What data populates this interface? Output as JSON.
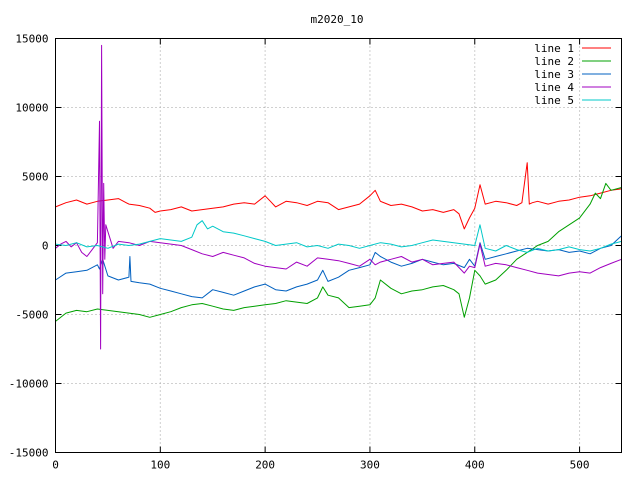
{
  "chart_data": {
    "type": "line",
    "title": "m2020_10",
    "xlabel": "",
    "ylabel": "",
    "xlim": [
      0,
      540
    ],
    "ylim": [
      -15000,
      15000
    ],
    "xticks": [
      0,
      100,
      200,
      300,
      400,
      500
    ],
    "yticks": [
      -15000,
      -10000,
      -5000,
      0,
      5000,
      10000,
      15000
    ],
    "grid": true,
    "legend_position": "top-right",
    "series": [
      {
        "name": "line 1",
        "color": "#ff0000",
        "x": [
          0,
          10,
          20,
          30,
          40,
          50,
          60,
          70,
          80,
          90,
          95,
          100,
          110,
          120,
          130,
          140,
          150,
          160,
          170,
          180,
          190,
          200,
          205,
          210,
          220,
          230,
          240,
          250,
          260,
          270,
          280,
          290,
          300,
          305,
          310,
          320,
          330,
          340,
          350,
          360,
          370,
          380,
          385,
          390,
          395,
          400,
          405,
          410,
          420,
          430,
          440,
          445,
          450,
          452,
          455,
          460,
          470,
          480,
          490,
          500,
          510,
          520,
          530,
          540
        ],
        "y": [
          2800,
          3100,
          3300,
          3000,
          3200,
          3300,
          3400,
          3000,
          2900,
          2700,
          2400,
          2500,
          2600,
          2800,
          2500,
          2600,
          2700,
          2800,
          3000,
          3100,
          3000,
          3600,
          3200,
          2800,
          3200,
          3100,
          2900,
          3200,
          3100,
          2600,
          2800,
          3000,
          3600,
          4000,
          3200,
          2900,
          3000,
          2800,
          2500,
          2600,
          2400,
          2600,
          2300,
          1200,
          2000,
          2700,
          4400,
          3000,
          3200,
          3100,
          2900,
          3100,
          6000,
          3000,
          3100,
          3200,
          3000,
          3200,
          3300,
          3500,
          3600,
          3800,
          4000,
          4100
        ]
      },
      {
        "name": "line 2",
        "color": "#00a000",
        "x": [
          0,
          10,
          20,
          30,
          40,
          50,
          60,
          70,
          80,
          90,
          100,
          110,
          120,
          130,
          140,
          150,
          160,
          170,
          180,
          190,
          200,
          210,
          220,
          230,
          240,
          250,
          255,
          260,
          270,
          280,
          290,
          300,
          305,
          310,
          320,
          330,
          340,
          350,
          360,
          370,
          380,
          385,
          390,
          395,
          400,
          405,
          410,
          420,
          430,
          440,
          450,
          460,
          470,
          480,
          490,
          500,
          510,
          515,
          520,
          525,
          530,
          540
        ],
        "y": [
          -5500,
          -4900,
          -4700,
          -4800,
          -4600,
          -4700,
          -4800,
          -4900,
          -5000,
          -5200,
          -5000,
          -4800,
          -4500,
          -4300,
          -4200,
          -4400,
          -4600,
          -4700,
          -4500,
          -4400,
          -4300,
          -4200,
          -4000,
          -4100,
          -4200,
          -3800,
          -3000,
          -3600,
          -3800,
          -4500,
          -4400,
          -4300,
          -3800,
          -2500,
          -3100,
          -3500,
          -3300,
          -3200,
          -3000,
          -2900,
          -3200,
          -3500,
          -5200,
          -3800,
          -1800,
          -2200,
          -2800,
          -2500,
          -1800,
          -1000,
          -500,
          0,
          300,
          1000,
          1500,
          2000,
          3000,
          3800,
          3400,
          4500,
          4000,
          4200
        ]
      },
      {
        "name": "line 3",
        "color": "#0060c0",
        "x": [
          0,
          10,
          20,
          30,
          40,
          42,
          45,
          50,
          60,
          70,
          71,
          72,
          80,
          90,
          100,
          110,
          120,
          130,
          140,
          150,
          160,
          170,
          180,
          190,
          200,
          210,
          220,
          230,
          240,
          250,
          255,
          260,
          270,
          280,
          290,
          300,
          305,
          310,
          320,
          330,
          340,
          350,
          360,
          370,
          380,
          390,
          395,
          400,
          405,
          410,
          420,
          430,
          440,
          450,
          460,
          470,
          480,
          490,
          500,
          510,
          520,
          530,
          540
        ],
        "y": [
          -2500,
          -2000,
          -1900,
          -1800,
          -1400,
          -1700,
          -1000,
          -2200,
          -2500,
          -2300,
          -800,
          -2600,
          -2700,
          -2800,
          -3100,
          -3300,
          -3500,
          -3700,
          -3800,
          -3200,
          -3400,
          -3600,
          -3300,
          -3000,
          -2800,
          -3200,
          -3300,
          -3000,
          -2800,
          -2500,
          -1800,
          -2600,
          -2300,
          -1800,
          -1600,
          -1400,
          -500,
          -800,
          -1200,
          -1500,
          -1300,
          -1000,
          -1200,
          -1400,
          -1300,
          -1600,
          -1000,
          -1500,
          200,
          -1000,
          -800,
          -600,
          -400,
          -200,
          -300,
          -400,
          -300,
          -500,
          -400,
          -600,
          -200,
          0,
          700
        ]
      },
      {
        "name": "line 4",
        "color": "#a000c0",
        "x": [
          0,
          5,
          10,
          15,
          20,
          25,
          30,
          35,
          40,
          42,
          43,
          44,
          45,
          46,
          47,
          48,
          50,
          55,
          60,
          70,
          80,
          90,
          100,
          110,
          120,
          130,
          140,
          150,
          160,
          170,
          180,
          190,
          200,
          210,
          220,
          230,
          240,
          250,
          260,
          270,
          280,
          290,
          300,
          305,
          310,
          320,
          330,
          340,
          350,
          360,
          370,
          380,
          390,
          395,
          400,
          405,
          410,
          420,
          430,
          440,
          450,
          460,
          470,
          480,
          490,
          500,
          510,
          520,
          530,
          540
        ],
        "y": [
          -200,
          100,
          300,
          -100,
          200,
          -500,
          -800,
          -300,
          200,
          9000,
          -7500,
          14500,
          -3500,
          4500,
          -1000,
          1500,
          1000,
          -200,
          300,
          200,
          0,
          300,
          200,
          100,
          0,
          -300,
          -600,
          -800,
          -500,
          -700,
          -900,
          -1300,
          -1500,
          -1600,
          -1700,
          -1200,
          -1500,
          -900,
          -1000,
          -1100,
          -1300,
          -1500,
          -1000,
          -1400,
          -1200,
          -1000,
          -800,
          -1200,
          -1000,
          -1400,
          -1300,
          -1200,
          -2000,
          -1500,
          -1600,
          100,
          -1500,
          -1300,
          -1400,
          -1600,
          -1800,
          -2000,
          -2100,
          -2200,
          -2000,
          -1900,
          -2000,
          -1600,
          -1300,
          -1000
        ]
      },
      {
        "name": "line 5",
        "color": "#00c8c8",
        "x": [
          0,
          10,
          20,
          30,
          40,
          50,
          60,
          70,
          80,
          90,
          100,
          110,
          120,
          130,
          135,
          140,
          145,
          150,
          160,
          170,
          180,
          190,
          200,
          210,
          220,
          230,
          240,
          250,
          260,
          270,
          280,
          290,
          300,
          310,
          320,
          330,
          340,
          350,
          360,
          370,
          380,
          390,
          400,
          405,
          410,
          420,
          430,
          440,
          450,
          460,
          470,
          480,
          490,
          500,
          510,
          520,
          530,
          540
        ],
        "y": [
          100,
          0,
          200,
          -100,
          0,
          -200,
          100,
          0,
          100,
          300,
          500,
          400,
          300,
          600,
          1500,
          1800,
          1200,
          1400,
          1000,
          900,
          700,
          500,
          300,
          0,
          100,
          200,
          -100,
          0,
          -200,
          100,
          0,
          -200,
          0,
          200,
          100,
          -100,
          0,
          200,
          400,
          300,
          200,
          100,
          0,
          1500,
          -200,
          -400,
          0,
          -300,
          -500,
          -200,
          -400,
          -300,
          -100,
          -300,
          -400,
          -200,
          100,
          300
        ]
      }
    ]
  }
}
